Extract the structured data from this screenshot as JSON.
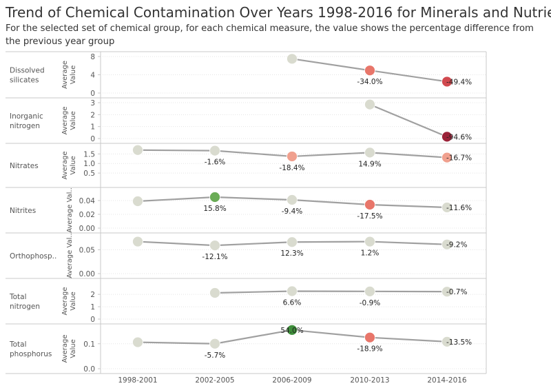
{
  "header": {
    "title": "Trend of Chemical Contamination Over Years 1998-2016 for Minerals and Nutrients",
    "subtitle": "For the selected set of chemical group, for each chemical measure, the value shows the percentage difference from the previous year group"
  },
  "chart_data": {
    "type": "line",
    "categories": [
      "1998-2001",
      "2002-2005",
      "2006-2009",
      "2010-2013",
      "2014-2016"
    ],
    "colors": {
      "neutral": "#d9dbcf",
      "light_red": "#f0a08e",
      "red": "#e8766a",
      "strong_red": "#d1494f",
      "dark_red": "#9b2238",
      "green": "#6aac56",
      "dark_green": "#3f8f3b",
      "line": "#a0a0a0"
    },
    "rows": [
      {
        "label_lines": [
          "Dissolved",
          "silicates"
        ],
        "axis_title_lines": [
          "Average",
          "Value"
        ],
        "ylim": [
          0,
          8
        ],
        "ticks": [
          {
            "v": 8,
            "t": "8"
          },
          {
            "v": 4,
            "t": "4"
          },
          {
            "v": 0,
            "t": "0"
          }
        ],
        "values": [
          null,
          null,
          7.5,
          4.95,
          2.5
        ],
        "labels": [
          null,
          null,
          null,
          "-34.0%",
          "-49.4%"
        ],
        "label_pos": [
          null,
          null,
          null,
          "below",
          "right"
        ],
        "colors": [
          null,
          null,
          "neutral",
          "red",
          "strong_red"
        ]
      },
      {
        "label_lines": [
          "Inorganic",
          "nitrogen"
        ],
        "axis_title_lines": [
          "Average",
          "Value"
        ],
        "ylim": [
          0,
          3
        ],
        "ticks": [
          {
            "v": 3,
            "t": "3"
          },
          {
            "v": 2,
            "t": "2"
          },
          {
            "v": 1,
            "t": "1"
          },
          {
            "v": 0,
            "t": "0"
          }
        ],
        "values": [
          null,
          null,
          null,
          2.85,
          0.15
        ],
        "labels": [
          null,
          null,
          null,
          null,
          "-94.6%"
        ],
        "label_pos": [
          null,
          null,
          null,
          null,
          "right"
        ],
        "colors": [
          null,
          null,
          null,
          "neutral",
          "dark_red"
        ]
      },
      {
        "label_lines": [
          "Nitrates"
        ],
        "axis_title_lines": [
          "Average",
          "Value"
        ],
        "ylim": [
          0,
          1.8
        ],
        "ticks": [
          {
            "v": 1.5,
            "t": "1.5"
          },
          {
            "v": 1.0,
            "t": "1.0"
          },
          {
            "v": 0.5,
            "t": "0.5"
          }
        ],
        "values": [
          1.7,
          1.67,
          1.37,
          1.57,
          1.31
        ],
        "labels": [
          null,
          "-1.6%",
          "-18.4%",
          "14.9%",
          "-16.7%"
        ],
        "label_pos": [
          null,
          "below",
          "below",
          "below",
          "right"
        ],
        "colors": [
          "neutral",
          "neutral",
          "light_red",
          "neutral",
          "light_red"
        ]
      },
      {
        "label_lines": [
          "Nitrites"
        ],
        "axis_title_lines": [
          "Average Val.."
        ],
        "ylim": [
          0,
          0.052
        ],
        "ticks": [
          {
            "v": 0.04,
            "t": "0.04"
          },
          {
            "v": 0.02,
            "t": "0.02"
          },
          {
            "v": 0,
            "t": "0.00"
          }
        ],
        "values": [
          0.039,
          0.045,
          0.041,
          0.034,
          0.03
        ],
        "labels": [
          null,
          "15.8%",
          "-9.4%",
          "-17.5%",
          "-11.6%"
        ],
        "label_pos": [
          null,
          "below",
          "below",
          "below",
          "right"
        ],
        "colors": [
          "neutral",
          "green",
          "neutral",
          "red",
          "neutral"
        ]
      },
      {
        "label_lines": [
          "Orthophosp.."
        ],
        "axis_title_lines": [
          "Average Val.."
        ],
        "ylim": [
          0,
          0.075
        ],
        "ticks": [
          {
            "v": 0.05,
            "t": "0.05"
          },
          {
            "v": 0,
            "t": "0.00"
          }
        ],
        "values": [
          0.067,
          0.059,
          0.066,
          0.067,
          0.061
        ],
        "labels": [
          null,
          "-12.1%",
          "12.3%",
          "1.2%",
          "-9.2%"
        ],
        "label_pos": [
          null,
          "below",
          "below",
          "below",
          "right"
        ],
        "colors": [
          "neutral",
          "neutral",
          "neutral",
          "neutral",
          "neutral"
        ]
      },
      {
        "label_lines": [
          "Total",
          "nitrogen"
        ],
        "axis_title_lines": [
          "Average",
          "Value"
        ],
        "ylim": [
          0,
          2.9
        ],
        "ticks": [
          {
            "v": 2,
            "t": "2"
          },
          {
            "v": 1,
            "t": "1"
          },
          {
            "v": 0,
            "t": "0"
          }
        ],
        "values": [
          null,
          2.12,
          2.26,
          2.24,
          2.22
        ],
        "labels": [
          null,
          null,
          "6.6%",
          "-0.9%",
          "-0.7%"
        ],
        "label_pos": [
          null,
          null,
          "below",
          "below",
          "right"
        ],
        "colors": [
          null,
          "neutral",
          "neutral",
          "neutral",
          "neutral"
        ]
      },
      {
        "label_lines": [
          "Total",
          "phosphorus"
        ],
        "axis_title_lines": [
          "Average",
          "Value"
        ],
        "ylim": [
          0,
          0.16
        ],
        "ticks": [
          {
            "v": 0.1,
            "t": "0.1"
          },
          {
            "v": 0,
            "t": "0.0"
          }
        ],
        "values": [
          0.106,
          0.1,
          0.155,
          0.125,
          0.108
        ],
        "labels": [
          null,
          "-5.7%",
          "54.0%",
          "-18.9%",
          "-13.5%"
        ],
        "label_pos": [
          null,
          "below",
          "on",
          "below",
          "right"
        ],
        "colors": [
          "neutral",
          "neutral",
          "dark_green",
          "red",
          "neutral"
        ]
      }
    ]
  }
}
